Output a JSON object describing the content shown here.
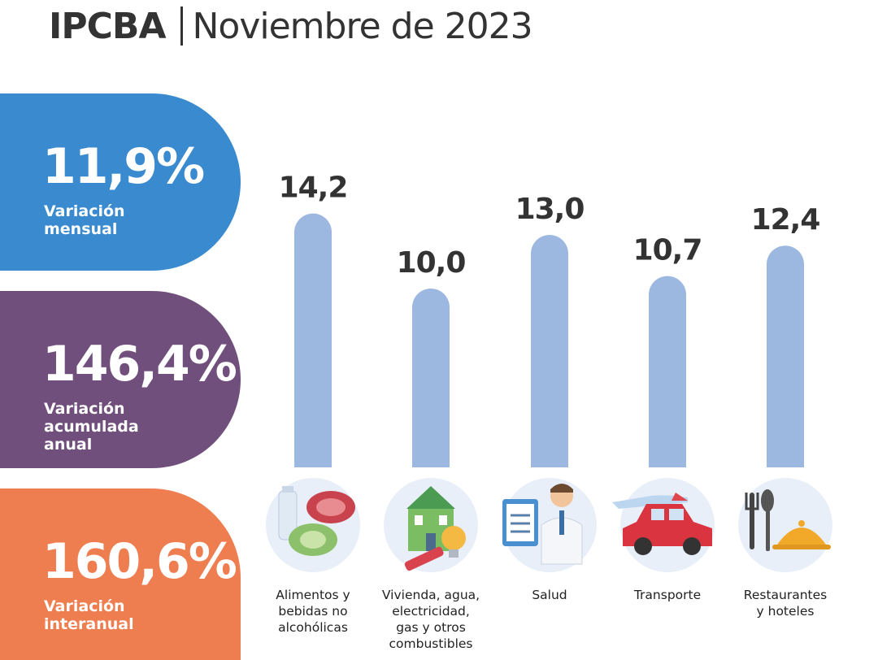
{
  "header": {
    "brand": "IPCBA",
    "date": "Noviembre de 2023"
  },
  "stats": {
    "mensual": {
      "value": "11,9%",
      "label": "Variación\nmensual",
      "color": "#3a8ad0"
    },
    "acumulada": {
      "value": "146,4%",
      "label": "Variación\nacumulada\nanual",
      "color": "#714f7d"
    },
    "interanual": {
      "value": "160,6%",
      "label": "Variación\ninteranual",
      "color": "#ee7d4f"
    }
  },
  "chart_data": {
    "type": "bar",
    "categories": [
      "Alimentos y\nbebidas no\nalcohólicas",
      "Vivienda, agua,\nelectricidad,\ngas y otros\ncombustibles",
      "Salud",
      "Transporte",
      "Restaurantes\ny hoteles"
    ],
    "values": [
      14.2,
      10.0,
      13.0,
      10.7,
      12.4
    ],
    "value_labels": [
      "14,2",
      "10,0",
      "13,0",
      "10,7",
      "12,4"
    ],
    "icons": [
      "food-icon",
      "housing-icon",
      "health-icon",
      "transport-icon",
      "restaurant-icon"
    ],
    "bar_color": "#9db8e0",
    "grid": false,
    "title": "",
    "xlabel": "",
    "ylabel": ""
  }
}
